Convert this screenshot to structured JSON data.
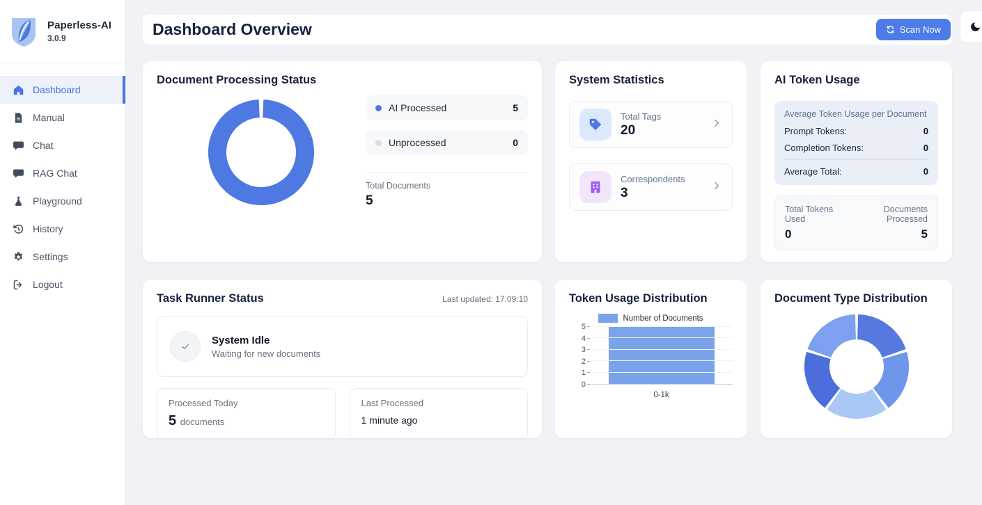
{
  "theme": {
    "accent": "#4d7ce8",
    "sidebar_active": "#4a74e8",
    "page_bg": "#f0f2f6",
    "title_color": "#16213c"
  },
  "app": {
    "name": "Paperless-AI",
    "version": "3.0.9"
  },
  "sidebar": {
    "items": [
      {
        "label": "Dashboard",
        "icon": "home-icon",
        "active": true
      },
      {
        "label": "Manual",
        "icon": "document-icon",
        "active": false
      },
      {
        "label": "Chat",
        "icon": "chat-icon",
        "active": false
      },
      {
        "label": "RAG Chat",
        "icon": "chat-icon",
        "active": false
      },
      {
        "label": "Playground",
        "icon": "flask-icon",
        "active": false
      },
      {
        "label": "History",
        "icon": "history-icon",
        "active": false
      },
      {
        "label": "Settings",
        "icon": "gear-icon",
        "active": false
      },
      {
        "label": "Logout",
        "icon": "logout-icon",
        "active": false
      }
    ]
  },
  "header": {
    "title": "Dashboard Overview",
    "scan_button_label": "Scan Now"
  },
  "cards": {
    "document_processing": {
      "title": "Document Processing Status",
      "legend": [
        {
          "label": "AI Processed",
          "value": "5"
        },
        {
          "label": "Unprocessed",
          "value": "0"
        }
      ],
      "total_label": "Total Documents",
      "total_value": "5"
    },
    "system_statistics": {
      "title": "System Statistics",
      "items": [
        {
          "label": "Total Tags",
          "value": "20",
          "icon": "tag-icon"
        },
        {
          "label": "Correspondents",
          "value": "3",
          "icon": "building-icon"
        }
      ]
    },
    "ai_token_usage": {
      "title": "AI Token Usage",
      "average_panel": {
        "heading": "Average Token Usage per Document",
        "rows": [
          {
            "label": "Prompt Tokens:",
            "value": "0"
          },
          {
            "label": "Completion Tokens:",
            "value": "0"
          }
        ],
        "total_row": {
          "label": "Average Total:",
          "value": "0"
        }
      },
      "totals_panel": {
        "left_label": "Total Tokens Used",
        "left_value": "0",
        "right_label": "Documents Processed",
        "right_value": "5"
      }
    },
    "task_runner": {
      "title": "Task Runner Status",
      "last_updated": "Last updated: 17:09:10",
      "status_title": "System Idle",
      "status_subtitle": "Waiting for new documents",
      "processed_today": {
        "label": "Processed Today",
        "value": "5",
        "unit": "documents"
      },
      "last_processed": {
        "label": "Last Processed",
        "value": "1 minute ago"
      }
    },
    "token_usage_distribution": {
      "title": "Token Usage Distribution"
    },
    "document_type_distribution": {
      "title": "Document Type Distribution"
    }
  },
  "chart_data": [
    {
      "id": "document-processing-doughnut",
      "type": "pie",
      "subtype": "doughnut",
      "title": "Document Processing Status",
      "labels": [
        "AI Processed",
        "Unprocessed"
      ],
      "values": [
        5,
        0
      ],
      "colors": [
        "#4e79e3",
        "#d9dde4"
      ],
      "total_documents": 5
    },
    {
      "id": "token-usage-bar",
      "type": "bar",
      "title": "Token Usage Distribution",
      "categories": [
        "0-1k"
      ],
      "series": [
        {
          "name": "Number of Documents",
          "values": [
            5
          ]
        }
      ],
      "ylim": [
        0,
        5
      ],
      "y_ticks": [
        0,
        1,
        2,
        3,
        4,
        5
      ],
      "bar_color": "#7aa3ea",
      "legend_position": "top",
      "grid": true
    },
    {
      "id": "document-type-doughnut",
      "type": "pie",
      "subtype": "doughnut",
      "title": "Document Type Distribution",
      "values": [
        1,
        1,
        1,
        1,
        1
      ],
      "colors": [
        "#5578e1",
        "#6e96eb",
        "#aac8f5",
        "#4b6edc",
        "#7da0f0"
      ]
    }
  ]
}
